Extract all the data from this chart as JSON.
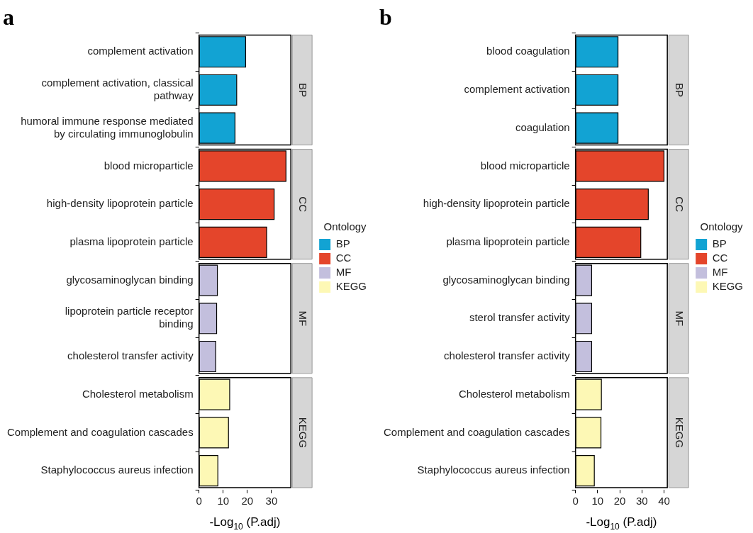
{
  "chart_data": [
    {
      "type": "bar",
      "orientation": "horizontal",
      "title": "a",
      "xlabel": "-Log$_{10}$ (P.adj)",
      "legend_title": "Ontology",
      "legend": "right",
      "grid": false,
      "xlim": [
        0,
        38
      ],
      "xticks": [
        0,
        10,
        20,
        30
      ],
      "categories": [
        "complement activation",
        "complement activation, classical\npathway",
        "humoral immune response mediated\nby circulating immunoglobulin",
        "blood microparticle",
        "high-density lipoprotein particle",
        "plasma lipoprotein particle",
        "glycosaminoglycan binding",
        "lipoprotein particle receptor\nbinding",
        "cholesterol transfer activity",
        "Cholesterol metabolism",
        "Complement and coagulation cascades",
        "Staphylococcus aureus infection"
      ],
      "series": [
        {
          "name": "BP",
          "color": "#12a3d3",
          "values": [
            19.3,
            15.6,
            14.9,
            null,
            null,
            null,
            null,
            null,
            null,
            null,
            null,
            null
          ]
        },
        {
          "name": "CC",
          "color": "#e4452b",
          "values": [
            null,
            null,
            null,
            36,
            31.1,
            28,
            null,
            null,
            null,
            null,
            null,
            null
          ]
        },
        {
          "name": "MF",
          "color": "#c3bfdd",
          "values": [
            null,
            null,
            null,
            null,
            null,
            null,
            7.6,
            7.3,
            6.9,
            null,
            null,
            null
          ]
        },
        {
          "name": "KEGG",
          "color": "#fdf8b5",
          "values": [
            null,
            null,
            null,
            null,
            null,
            null,
            null,
            null,
            null,
            12.7,
            12.2,
            7.8
          ]
        }
      ]
    },
    {
      "type": "bar",
      "orientation": "horizontal",
      "title": "b",
      "xlabel": "-Log$_{10}$ (P.adj)",
      "legend_title": "Ontology",
      "legend": "right",
      "grid": false,
      "xlim": [
        0,
        41.5
      ],
      "xticks": [
        0,
        10,
        20,
        30,
        40
      ],
      "categories": [
        "blood coagulation",
        "complement activation",
        "coagulation",
        "blood microparticle",
        "high-density lipoprotein particle",
        "plasma lipoprotein particle",
        "glycosaminoglycan binding",
        "sterol transfer activity",
        "cholesterol transfer activity",
        "Cholesterol metabolism",
        "Complement and coagulation cascades",
        "Staphylococcus aureus infection"
      ],
      "series": [
        {
          "name": "BP",
          "color": "#12a3d3",
          "values": [
            19.2,
            19.2,
            19.2,
            null,
            null,
            null,
            null,
            null,
            null,
            null,
            null,
            null
          ]
        },
        {
          "name": "CC",
          "color": "#e4452b",
          "values": [
            null,
            null,
            null,
            40,
            32.9,
            29.5,
            null,
            null,
            null,
            null,
            null,
            null
          ]
        },
        {
          "name": "MF",
          "color": "#c3bfdd",
          "values": [
            null,
            null,
            null,
            null,
            null,
            null,
            7.3,
            7.3,
            7.3,
            null,
            null,
            null
          ]
        },
        {
          "name": "KEGG",
          "color": "#fdf8b5",
          "values": [
            null,
            null,
            null,
            null,
            null,
            null,
            null,
            null,
            null,
            11.7,
            11.5,
            8.5
          ]
        }
      ]
    }
  ]
}
